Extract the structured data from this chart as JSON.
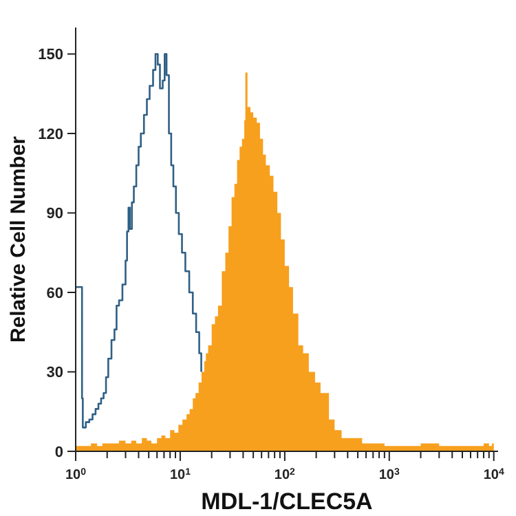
{
  "chart_data": {
    "type": "area",
    "xlabel": "MDL-1/CLEC5A",
    "ylabel": "Relative Cell Number",
    "log": "x",
    "xlim": [
      1,
      11000
    ],
    "ylim": [
      0,
      160
    ],
    "yticks": [
      0,
      30,
      60,
      90,
      120,
      150
    ],
    "xticks": [
      {
        "value": 1,
        "label": "10$^{0}$"
      },
      {
        "value": 2,
        "label": null
      },
      {
        "value": 3,
        "label": null
      },
      {
        "value": 4,
        "label": null
      },
      {
        "value": 5,
        "label": null
      },
      {
        "value": 6,
        "label": null
      },
      {
        "value": 7,
        "label": null
      },
      {
        "value": 8,
        "label": null
      },
      {
        "value": 9,
        "label": null
      },
      {
        "value": 10,
        "label": "10$^{1}$"
      },
      {
        "value": 20,
        "label": null
      },
      {
        "value": 30,
        "label": null
      },
      {
        "value": 40,
        "label": null
      },
      {
        "value": 50,
        "label": null
      },
      {
        "value": 60,
        "label": null
      },
      {
        "value": 70,
        "label": null
      },
      {
        "value": 80,
        "label": null
      },
      {
        "value": 90,
        "label": null
      },
      {
        "value": 100,
        "label": "10$^{2}$"
      },
      {
        "value": 200,
        "label": null
      },
      {
        "value": 300,
        "label": null
      },
      {
        "value": 400,
        "label": null
      },
      {
        "value": 500,
        "label": null
      },
      {
        "value": 600,
        "label": null
      },
      {
        "value": 700,
        "label": null
      },
      {
        "value": 800,
        "label": null
      },
      {
        "value": 900,
        "label": null
      },
      {
        "value": 1000,
        "label": "10$^{3}$"
      },
      {
        "value": 2000,
        "label": null
      },
      {
        "value": 3000,
        "label": null
      },
      {
        "value": 4000,
        "label": null
      },
      {
        "value": 5000,
        "label": null
      },
      {
        "value": 6000,
        "label": null
      },
      {
        "value": 7000,
        "label": null
      },
      {
        "value": 8000,
        "label": null
      },
      {
        "value": 9000,
        "label": null
      },
      {
        "value": 10000,
        "label": "10$^{4}$"
      }
    ],
    "series": [
      {
        "color": "#f7a01e",
        "x": [
          1,
          1.2,
          1.4,
          1.6,
          1.8,
          2,
          2.3,
          2.6,
          3,
          3.4,
          3.8,
          4.3,
          4.8,
          5.3,
          6,
          6.6,
          7.2,
          8,
          8.8,
          9.6,
          10.5,
          11.5,
          12.3,
          13.2,
          14,
          15,
          16,
          17,
          17.6,
          18.5,
          20,
          21.5,
          23,
          25,
          27,
          29,
          31,
          33,
          35,
          37,
          39,
          41,
          42,
          44,
          47,
          50,
          54,
          58,
          62,
          66,
          72,
          78,
          85,
          92,
          100,
          110,
          120,
          135,
          150,
          170,
          195,
          220,
          265,
          300,
          350,
          440,
          550,
          700,
          900,
          1200,
          1600,
          2000,
          3000,
          4000,
          5000,
          6000,
          7000,
          8000,
          9000,
          9600,
          10000
        ],
        "values": [
          2,
          2,
          3,
          2,
          3,
          3,
          3,
          4,
          3,
          4,
          3,
          5,
          4,
          3,
          5,
          6,
          5,
          8,
          7,
          10,
          12,
          14,
          16,
          20,
          22,
          26,
          30,
          34,
          37,
          40,
          48,
          51,
          55,
          68,
          75,
          85,
          96,
          101,
          110,
          115,
          118,
          125,
          143,
          130,
          128,
          126,
          124,
          118,
          112,
          108,
          104,
          98,
          90,
          80,
          70,
          62,
          52,
          40,
          37,
          30,
          26,
          22,
          12,
          8,
          5,
          5,
          3,
          3,
          2,
          2,
          2,
          3,
          2,
          2,
          2,
          2,
          2,
          3,
          2,
          3,
          2
        ]
      },
      {
        "type": "step",
        "color": "#2f5f85",
        "x": [
          1,
          1.12,
          1.15,
          1.17,
          1.25,
          1.35,
          1.45,
          1.55,
          1.65,
          1.75,
          1.85,
          1.95,
          2.05,
          2.2,
          2.35,
          2.46,
          2.6,
          2.8,
          3.0,
          3.1,
          3.2,
          3.3,
          3.45,
          3.6,
          3.8,
          4.0,
          4.2,
          4.5,
          4.8,
          5.1,
          5.5,
          5.8,
          6.1,
          6.4,
          6.8,
          7.1,
          7.4,
          7.8,
          8.2,
          8.6,
          9.1,
          9.7,
          10.4,
          11.2,
          12.2,
          13.2,
          14.2,
          15.2,
          15.9
        ],
        "values": [
          62,
          62,
          20,
          9,
          11,
          12,
          14,
          16,
          18,
          20,
          22,
          28,
          35,
          42,
          46,
          55,
          57,
          63,
          72,
          83,
          92,
          84,
          94,
          100,
          108,
          115,
          120,
          127,
          133,
          138,
          144,
          150,
          146,
          137,
          140,
          150,
          142,
          120,
          108,
          100,
          90,
          82,
          75,
          68,
          60,
          52,
          45,
          37,
          30
        ]
      }
    ]
  }
}
